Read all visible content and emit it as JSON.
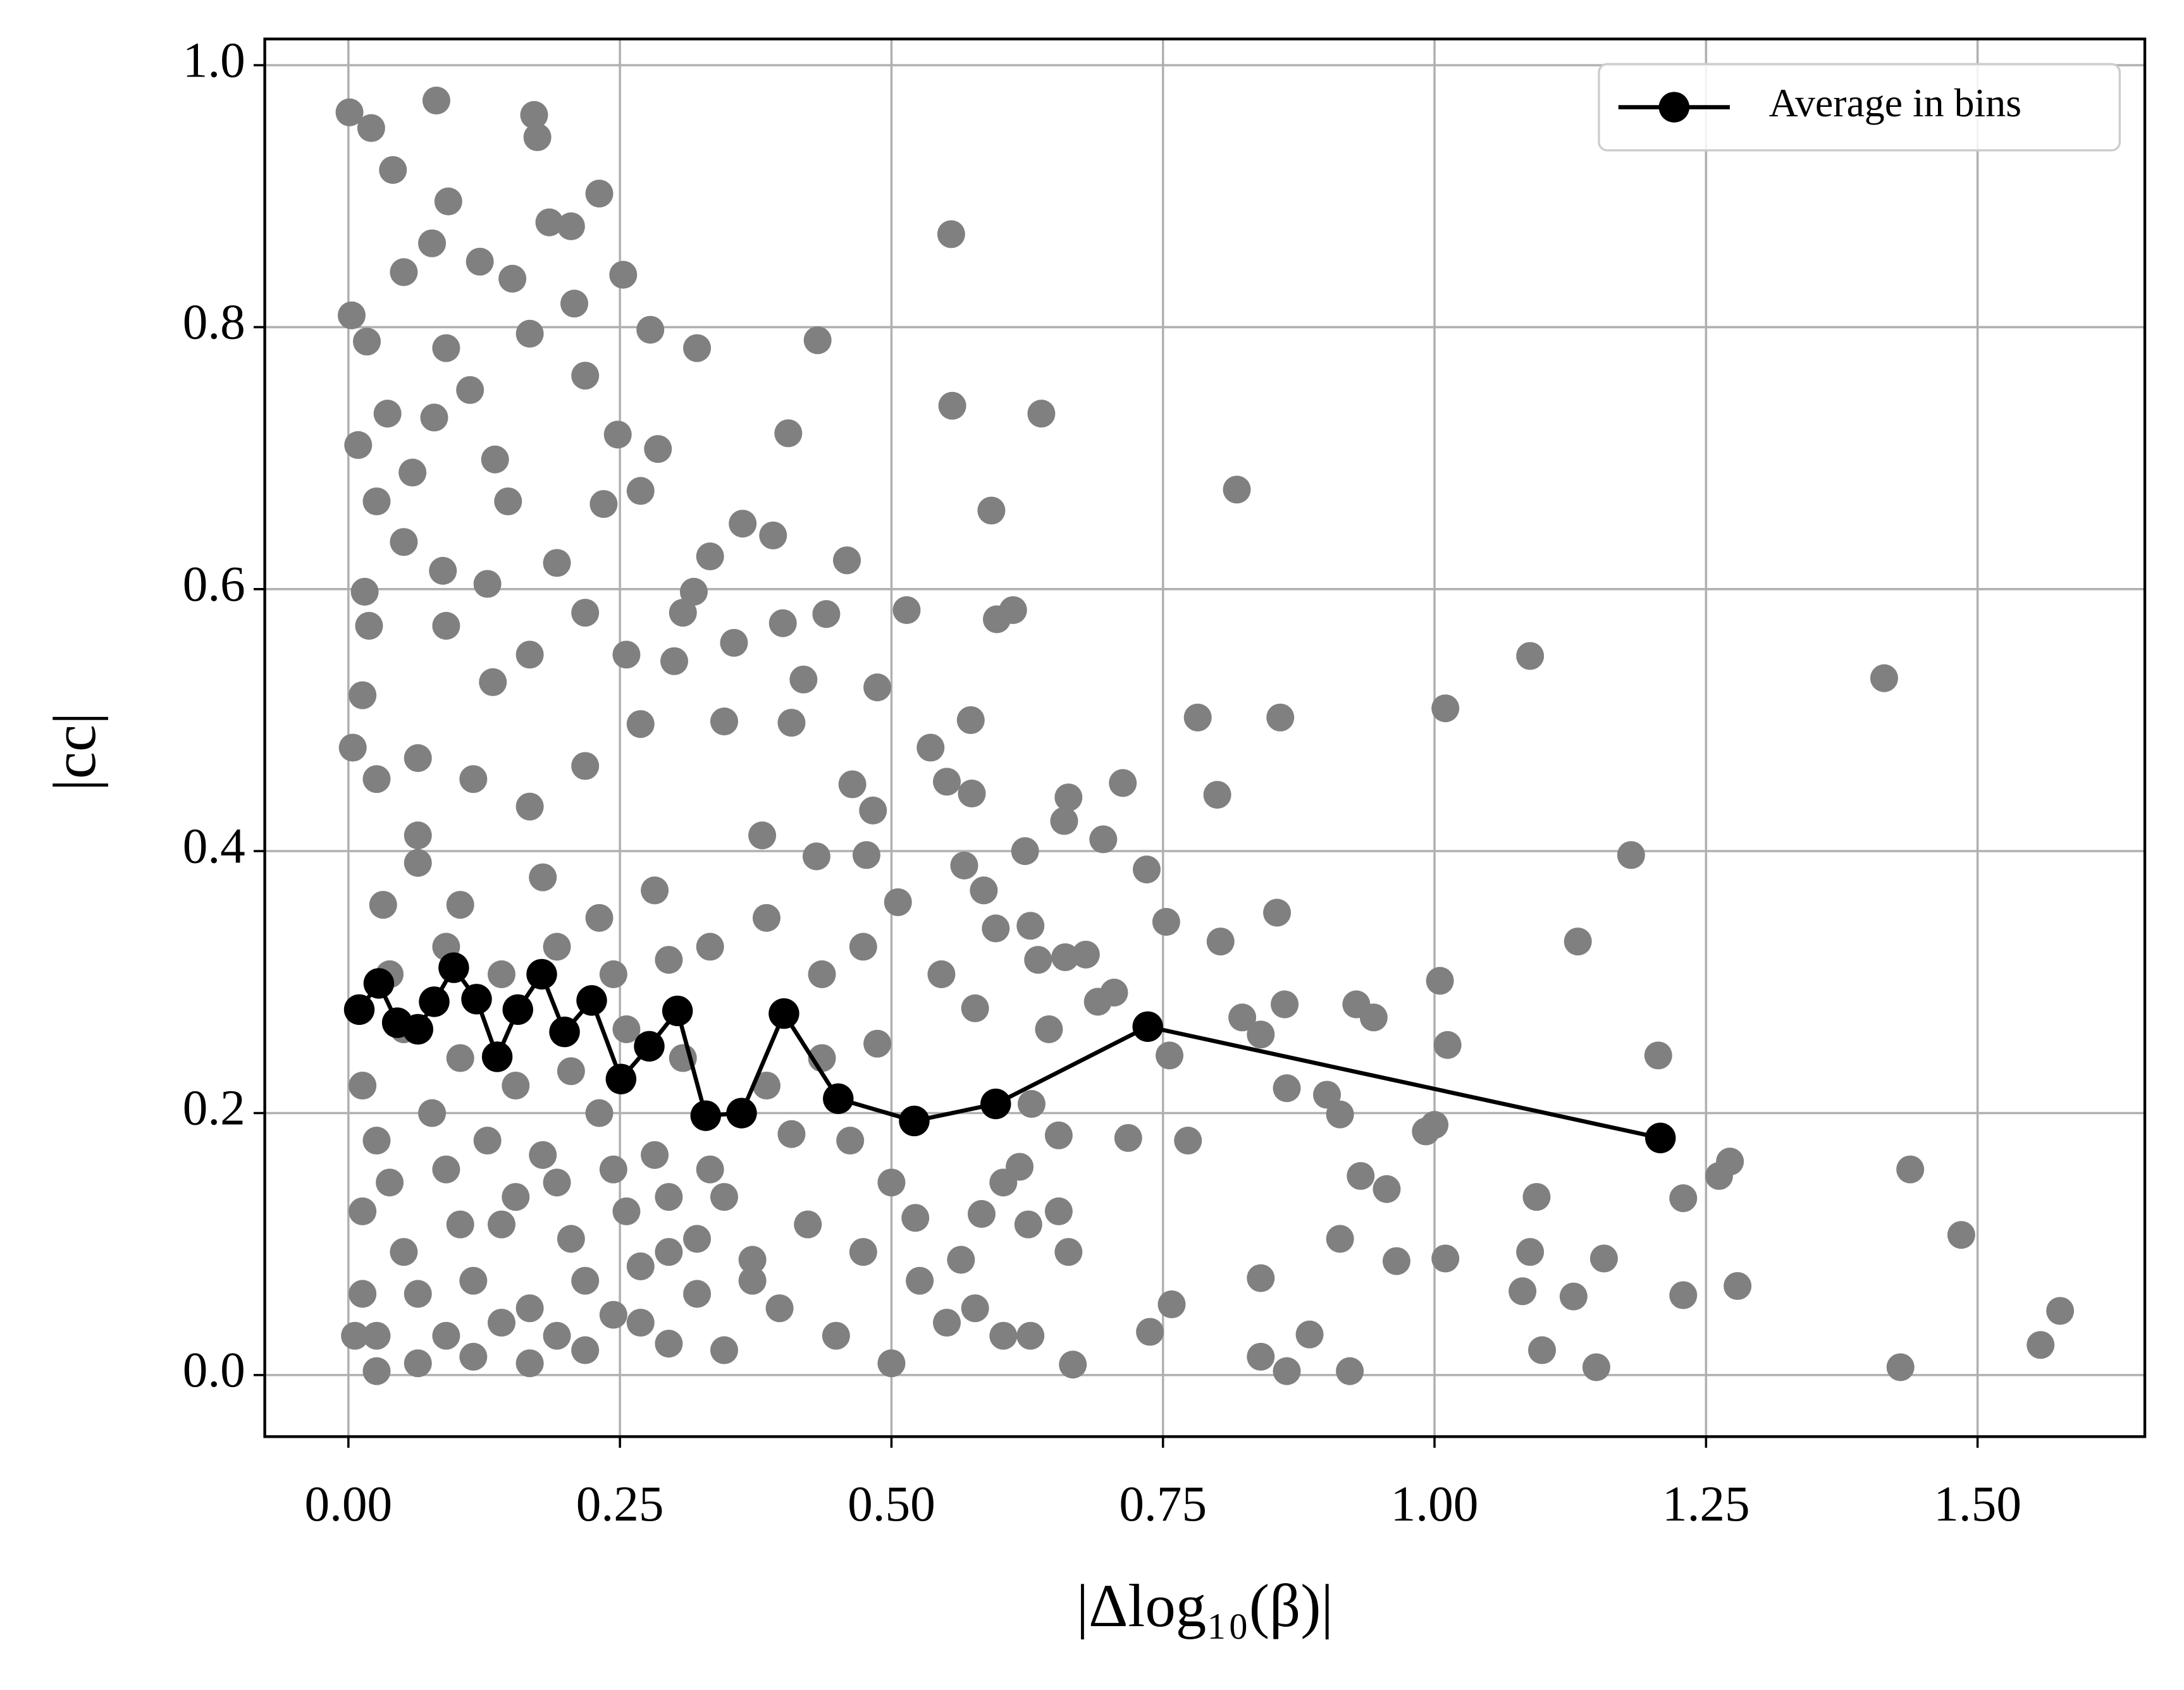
{
  "chart_data": {
    "type": "scatter",
    "xlabel": "|Δlog₁₀(β)|",
    "ylabel": "|cc|",
    "xlim": [
      -0.077,
      1.654
    ],
    "ylim": [
      -0.047,
      1.02
    ],
    "xticks": [
      {
        "value": 0,
        "label": "0.00"
      },
      0.25,
      {
        "value": 0.5,
        "label": "0.50"
      },
      0.75,
      {
        "value": 1,
        "label": "1.00"
      },
      1.25,
      {
        "value": 1.5,
        "label": "1.50"
      }
    ],
    "yticks": [
      {
        "value": 0,
        "label": "0.0"
      },
      0.2,
      0.4,
      0.6,
      0.8,
      {
        "value": 1,
        "label": "1.0"
      }
    ],
    "grid": true,
    "legend": "upper right",
    "series": [
      {
        "type": "scatter",
        "color": "#808080",
        "x": [
          0.555,
          0.556,
          0.638,
          0.818,
          0.592,
          0.432,
          0.405,
          0.514,
          0.612,
          0.597,
          1.088,
          1.414,
          1.01,
          0.782,
          0.858,
          0.8,
          0.713,
          1.181,
          1.132,
          0.855,
          0.803,
          0.753,
          0.735,
          0.695,
          0.623,
          1.005,
          0.928,
          0.944,
          1.012,
          0.862,
          0.823,
          0.84,
          1.206,
          0.756,
          0.864,
          0.901,
          0.913,
          0.992,
          1.0,
          1.272,
          1.262,
          1.438,
          1.229,
          1.094,
          0.932,
          0.956,
          1.485,
          0.913,
          0.965,
          1.01,
          1.088,
          1.156,
          1.081,
          1.128,
          1.229,
          1.279,
          0.84,
          0.758,
          0.738,
          1.099,
          1.149,
          1.429,
          1.576,
          1.558,
          0.84,
          0.864,
          0.885,
          0.922,
          0.773,
          0.718,
          0.667,
          0.663,
          0.001,
          0.021,
          0.081,
          0.171,
          0.174,
          0.041,
          0.092,
          0.231,
          0.185,
          0.205,
          0.077,
          0.253,
          0.121,
          0.051,
          0.151,
          0.003,
          0.208,
          0.017,
          0.321,
          0.278,
          0.09,
          0.167,
          0.036,
          0.218,
          0.112,
          0.009,
          0.079,
          0.248,
          0.285,
          0.135,
          0.059,
          0.269,
          0.026,
          0.235,
          0.147,
          0.192,
          0.087,
          0.333,
          0.363,
          0.391,
          0.015,
          0.318,
          0.459,
          0.4,
          0.44,
          0.487,
          0.355,
          0.3,
          0.133,
          0.004,
          0.064,
          0.419,
          0.408,
          0.464,
          0.483,
          0.536,
          0.573,
          0.551,
          0.574,
          0.567,
          0.585,
          0.596,
          0.506,
          0.477,
          0.431,
          0.381,
          0.346,
          0.628,
          0.66,
          0.635,
          0.679,
          0.663,
          0.659,
          0.546,
          0.577,
          0.645,
          0.69,
          0.705,
          0.629,
          0.654,
          0.618,
          0.603,
          0.583,
          0.654,
          0.626,
          0.564,
          0.522,
          0.5,
          0.462,
          0.408,
          0.372,
          0.321,
          0.269,
          0.218,
          0.167,
          0.115,
          0.064,
          0.026,
          0.006,
          0.051,
          0.103,
          0.154,
          0.205,
          0.256,
          0.295,
          0.346,
          0.397,
          0.449,
          0.5,
          0.551,
          0.603,
          0.013,
          0.013,
          0.032,
          0.064,
          0.115,
          0.167,
          0.218,
          0.269,
          0.103,
          0.179,
          0.231,
          0.282,
          0.333,
          0.385,
          0.436,
          0.474,
          0.026,
          0.077,
          0.128,
          0.179,
          0.231,
          0.282,
          0.333,
          0.385,
          0.436,
          0.487,
          0.051,
          0.103,
          0.154,
          0.205,
          0.256,
          0.308,
          0.038,
          0.09,
          0.141,
          0.192,
          0.244,
          0.295,
          0.064,
          0.115,
          0.167,
          0.218,
          0.269,
          0.321,
          0.372,
          0.423,
          0.474,
          0.526,
          0.577,
          0.628,
          0.013,
          0.026,
          0.09,
          0.141,
          0.192,
          0.244,
          0.295,
          0.346,
          0.038,
          0.09,
          0.141,
          0.192,
          0.244,
          0.295,
          0.064,
          0.026,
          0.013,
          0.019,
          0.051,
          0.09,
          0.128,
          0.167,
          0.218,
          0.256,
          0.308
        ],
        "values": [
          0.871,
          0.74,
          0.734,
          0.676,
          0.66,
          0.79,
          0.719,
          0.584,
          0.584,
          0.577,
          0.549,
          0.532,
          0.509,
          0.502,
          0.502,
          0.443,
          0.452,
          0.397,
          0.331,
          0.353,
          0.331,
          0.346,
          0.386,
          0.409,
          0.4,
          0.301,
          0.283,
          0.273,
          0.252,
          0.283,
          0.273,
          0.26,
          0.244,
          0.244,
          0.219,
          0.214,
          0.199,
          0.186,
          0.191,
          0.163,
          0.152,
          0.157,
          0.135,
          0.136,
          0.152,
          0.142,
          0.107,
          0.104,
          0.087,
          0.089,
          0.094,
          0.089,
          0.064,
          0.06,
          0.061,
          0.068,
          0.074,
          0.054,
          0.033,
          0.019,
          0.006,
          0.006,
          0.049,
          0.023,
          0.014,
          0.003,
          0.031,
          0.003,
          0.179,
          0.181,
          0.008,
          0.094,
          0.964,
          0.952,
          0.973,
          0.962,
          0.945,
          0.92,
          0.896,
          0.902,
          0.88,
          0.877,
          0.864,
          0.84,
          0.85,
          0.842,
          0.837,
          0.809,
          0.818,
          0.789,
          0.784,
          0.798,
          0.784,
          0.795,
          0.734,
          0.763,
          0.752,
          0.71,
          0.731,
          0.718,
          0.707,
          0.699,
          0.689,
          0.675,
          0.667,
          0.665,
          0.667,
          0.62,
          0.614,
          0.625,
          0.65,
          0.641,
          0.598,
          0.598,
          0.622,
          0.574,
          0.581,
          0.525,
          0.559,
          0.545,
          0.529,
          0.479,
          0.471,
          0.531,
          0.498,
          0.451,
          0.431,
          0.479,
          0.5,
          0.453,
          0.444,
          0.389,
          0.37,
          0.341,
          0.361,
          0.397,
          0.396,
          0.412,
          0.499,
          0.343,
          0.319,
          0.317,
          0.321,
          0.441,
          0.423,
          0.306,
          0.28,
          0.264,
          0.285,
          0.292,
          0.207,
          0.183,
          0.159,
          0.147,
          0.123,
          0.125,
          0.115,
          0.088,
          0.12,
          0.147,
          0.179,
          0.184,
          0.088,
          0.062,
          0.04,
          0.019,
          0.009,
          0.014,
          0.009,
          0.003,
          0.03,
          0.094,
          0.115,
          0.136,
          0.104,
          0.125,
          0.094,
          0.136,
          0.051,
          0.03,
          0.009,
          0.04,
          0.03,
          0.125,
          0.221,
          0.359,
          0.412,
          0.455,
          0.434,
          0.465,
          0.497,
          0.359,
          0.38,
          0.349,
          0.37,
          0.327,
          0.349,
          0.306,
          0.327,
          0.179,
          0.2,
          0.179,
          0.168,
          0.2,
          0.168,
          0.157,
          0.221,
          0.242,
          0.253,
          0.264,
          0.242,
          0.221,
          0.232,
          0.264,
          0.242,
          0.306,
          0.327,
          0.306,
          0.327,
          0.306,
          0.317,
          0.062,
          0.072,
          0.051,
          0.072,
          0.083,
          0.104,
          0.072,
          0.115,
          0.094,
          0.072,
          0.051,
          0.03,
          0.062,
          0.03,
          0.03,
          0.04,
          0.03,
          0.046,
          0.024,
          0.019,
          0.147,
          0.157,
          0.115,
          0.147,
          0.157,
          0.136,
          0.391,
          0.455,
          0.519,
          0.572,
          0.636,
          0.572,
          0.604,
          0.55,
          0.582,
          0.55,
          0.582
        ]
      },
      {
        "type": "line",
        "name": "Average in bins",
        "color": "#000000",
        "x": [
          0.01,
          0.028,
          0.045,
          0.064,
          0.079,
          0.097,
          0.118,
          0.137,
          0.156,
          0.178,
          0.199,
          0.224,
          0.251,
          0.277,
          0.303,
          0.329,
          0.362,
          0.401,
          0.451,
          0.521,
          0.596,
          0.736,
          1.208
        ],
        "values": [
          0.279,
          0.299,
          0.269,
          0.264,
          0.285,
          0.311,
          0.287,
          0.243,
          0.279,
          0.306,
          0.262,
          0.286,
          0.226,
          0.251,
          0.278,
          0.198,
          0.2,
          0.276,
          0.211,
          0.194,
          0.207,
          0.266,
          0.181
        ]
      }
    ]
  }
}
